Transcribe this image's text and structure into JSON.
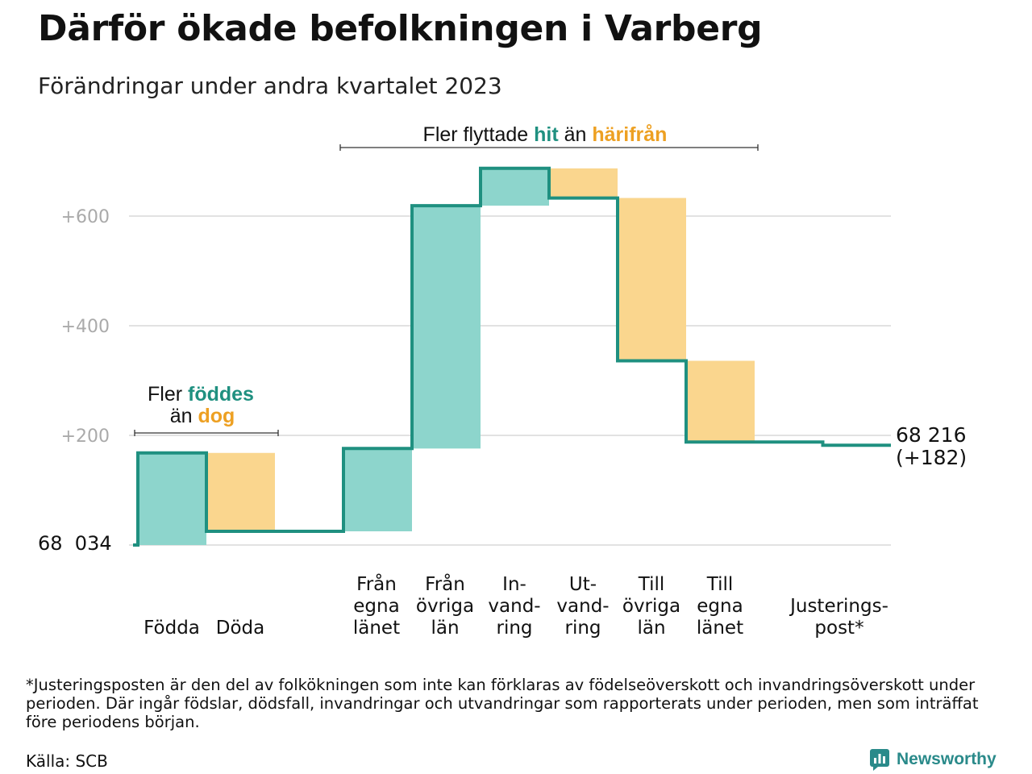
{
  "title": "Därför ökade befolkningen i Varberg",
  "subtitle": "Förändringar under andra kvartalet 2023",
  "chart_data": {
    "type": "waterfall",
    "base_value_label": "68  034",
    "end_value_label": "68 216",
    "end_change_label": "(+182)",
    "y_ticks": [
      {
        "value": 200,
        "label": "+200"
      },
      {
        "value": 400,
        "label": "+400"
      },
      {
        "value": 600,
        "label": "+600"
      }
    ],
    "steps": [
      {
        "category": "Födda",
        "label_lines": [
          "Födda"
        ],
        "change": 168,
        "kind": "increase"
      },
      {
        "category": "Döda",
        "label_lines": [
          "Döda"
        ],
        "change": -143,
        "kind": "decrease"
      },
      {
        "category": "Från egna länet",
        "label_lines": [
          "Från",
          "egna",
          "länet"
        ],
        "change": 151,
        "kind": "increase"
      },
      {
        "category": "Från övriga län",
        "label_lines": [
          "Från",
          "övriga",
          "län"
        ],
        "change": 443,
        "kind": "increase"
      },
      {
        "category": "In-vand-ring",
        "label_lines": [
          "In-",
          "vand-",
          "ring"
        ],
        "change": 68,
        "kind": "increase"
      },
      {
        "category": "Ut-vand-ring",
        "label_lines": [
          "Ut-",
          "vand-",
          "ring"
        ],
        "change": -54,
        "kind": "decrease"
      },
      {
        "category": "Till övriga län",
        "label_lines": [
          "Till",
          "övriga",
          "län"
        ],
        "change": -297,
        "kind": "decrease"
      },
      {
        "category": "Till egna länet",
        "label_lines": [
          "Till",
          "egna",
          "länet"
        ],
        "change": -148,
        "kind": "decrease"
      },
      {
        "category": "Justerings-post*",
        "label_lines": [
          "Justerings-",
          "post*"
        ],
        "change": -6,
        "kind": "adjustment"
      }
    ],
    "total_change": 182,
    "annotations": {
      "births": {
        "line1_prefix": "Fler ",
        "line1_highlight": "föddes",
        "line2_prefix": "än ",
        "line2_highlight": "dog"
      },
      "migration": {
        "prefix": "Fler flyttade ",
        "highlight1": "hit",
        "middle": " än ",
        "highlight2": "härifrån"
      }
    },
    "colors": {
      "increase": "#8dd5cc",
      "decrease": "#fad68e",
      "line": "#1f9080",
      "highlight_teal": "#1f9080",
      "highlight_orange": "#eda022",
      "grid": "#e2e2e2",
      "tick_text": "#aaaaaa"
    }
  },
  "footnote": "*Justeringsposten är den del av folkökningen som inte kan förklaras av födelseöverskott och invandringsöverskott under perioden. Där ingår födslar, dödsfall, invandringar och utvandringar som rapporterats under perioden, men som inträffat före periodens början.",
  "source": "Källa: SCB",
  "brand": {
    "name": "Newsworthy",
    "logo_icon": "bar-chart-icon",
    "color": "#2a8a8a"
  }
}
